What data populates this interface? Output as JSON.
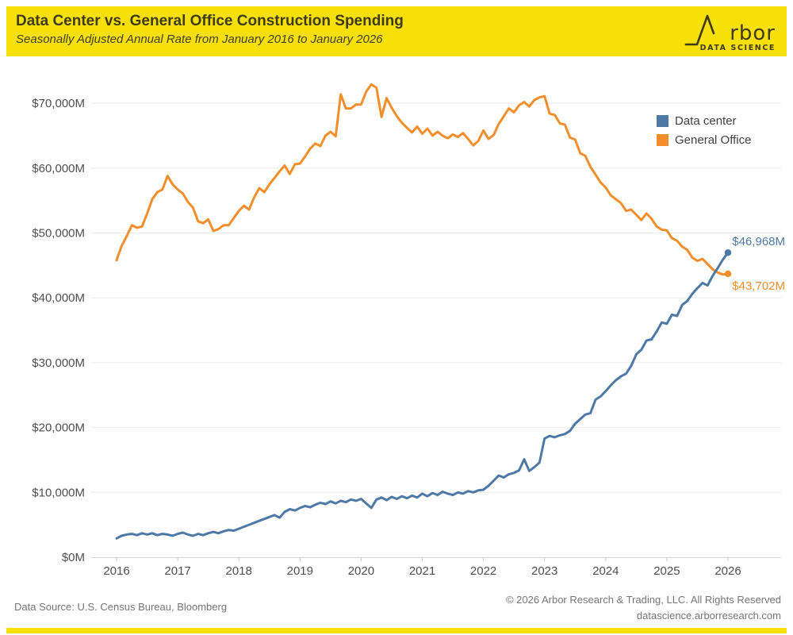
{
  "header": {
    "title": "Data Center vs. General Office Construction Spending",
    "subtitle": "Seasonally Adjusted Annual Rate from January 2016 to January 2026",
    "background_color": "#F7E008",
    "text_color": "#3F3B16",
    "logo": {
      "full_name": "Arbor",
      "text_display": "rbor",
      "tagline": "DATA SCIENCE"
    }
  },
  "legend": [
    {
      "label": "Data center",
      "color": "#4E79A7"
    },
    {
      "label": "General Office",
      "color": "#F28E2B"
    }
  ],
  "annotations": {
    "data_center_end_label": "$46,968M",
    "general_office_end_label": "$43,702M"
  },
  "footer": {
    "source": "Data Source: U.S. Census Bureau, Bloomberg",
    "copyright": "© 2026 Arbor Research & Trading, LLC. All Rights Reserved",
    "website": "datascience.arborresearch.com"
  },
  "chart_data": {
    "type": "line",
    "title": "Data Center vs. General Office Construction Spending",
    "x_unit": "month",
    "x_range": [
      "2016-01",
      "2026-01"
    ],
    "x_ticks": [
      "2016",
      "2017",
      "2018",
      "2019",
      "2020",
      "2021",
      "2022",
      "2023",
      "2024",
      "2025",
      "2026"
    ],
    "y_ticks": [
      {
        "label": "$0M",
        "value": 0
      },
      {
        "label": "$10,000M",
        "value": 10000
      },
      {
        "label": "$20,000M",
        "value": 20000
      },
      {
        "label": "$30,000M",
        "value": 30000
      },
      {
        "label": "$40,000M",
        "value": 40000
      },
      {
        "label": "$50,000M",
        "value": 50000
      },
      {
        "label": "$60,000M",
        "value": 60000
      },
      {
        "label": "$70,000M",
        "value": 70000
      }
    ],
    "ylim": [
      0,
      75000
    ],
    "grid": "horizontal-only",
    "legend_position": "top-right-inside",
    "series": [
      {
        "name": "General Office",
        "color": "#F28E2B",
        "end_value": 43702,
        "values": [
          45800,
          48000,
          49500,
          51200,
          50800,
          51000,
          53000,
          55200,
          56300,
          56700,
          58800,
          57500,
          56700,
          56100,
          54800,
          53900,
          51800,
          51500,
          52100,
          50300,
          50600,
          51200,
          51200,
          52300,
          53400,
          54200,
          53600,
          55500,
          56900,
          56300,
          57500,
          58500,
          59500,
          60400,
          59100,
          60600,
          60700,
          61800,
          63000,
          63800,
          63400,
          65000,
          65600,
          64900,
          71400,
          69200,
          69200,
          69800,
          69800,
          71800,
          72900,
          72400,
          67900,
          70800,
          69300,
          68000,
          67000,
          66200,
          65500,
          66400,
          65300,
          66100,
          65000,
          65600,
          65000,
          64600,
          65200,
          64800,
          65400,
          64500,
          63500,
          64200,
          65800,
          64500,
          65100,
          66800,
          68000,
          69200,
          68600,
          69700,
          70200,
          69500,
          70500,
          70900,
          71100,
          68400,
          68200,
          66900,
          66700,
          64700,
          64400,
          62300,
          61900,
          60200,
          59000,
          57800,
          57000,
          55800,
          55200,
          54600,
          53400,
          53600,
          52800,
          52000,
          53000,
          52200,
          51000,
          50500,
          50400,
          49200,
          48800,
          47900,
          47400,
          46200,
          45700,
          46000,
          45200,
          44400,
          43900,
          43600,
          43702
        ]
      },
      {
        "name": "Data center",
        "color": "#4E79A7",
        "end_value": 46968,
        "values": [
          2900,
          3300,
          3500,
          3600,
          3400,
          3700,
          3500,
          3700,
          3400,
          3600,
          3500,
          3300,
          3600,
          3800,
          3500,
          3300,
          3600,
          3400,
          3700,
          3900,
          3700,
          4000,
          4200,
          4100,
          4400,
          4700,
          5000,
          5300,
          5600,
          5900,
          6200,
          6500,
          6100,
          7000,
          7400,
          7200,
          7600,
          7900,
          7700,
          8100,
          8400,
          8200,
          8600,
          8300,
          8700,
          8500,
          8900,
          8700,
          9000,
          8300,
          7600,
          8900,
          9200,
          8800,
          9300,
          9000,
          9400,
          9100,
          9500,
          9200,
          9800,
          9400,
          9900,
          9600,
          10100,
          9800,
          9600,
          10000,
          9800,
          10200,
          10000,
          10300,
          10400,
          11000,
          11800,
          12600,
          12300,
          12800,
          13000,
          13400,
          15100,
          13300,
          13900,
          14600,
          18300,
          18700,
          18500,
          18800,
          19000,
          19500,
          20600,
          21300,
          22000,
          22200,
          24300,
          24800,
          25600,
          26500,
          27300,
          27900,
          28300,
          29500,
          31300,
          32000,
          33400,
          33600,
          34800,
          36200,
          36000,
          37400,
          37200,
          38900,
          39500,
          40600,
          41500,
          42300,
          41900,
          43400,
          44600,
          45900,
          46968
        ]
      }
    ]
  }
}
